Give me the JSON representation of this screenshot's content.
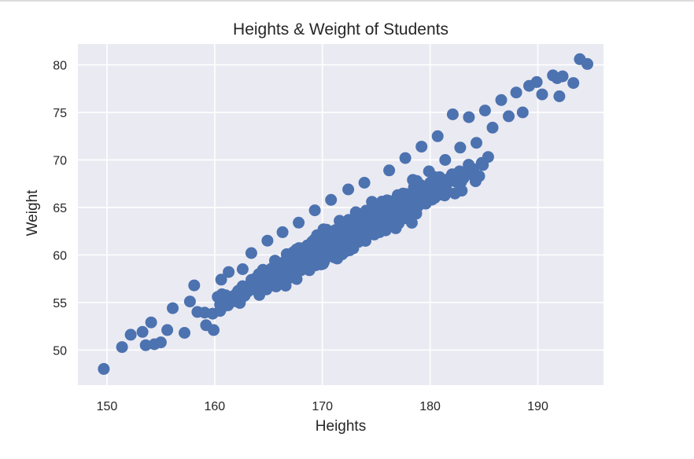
{
  "chart_data": {
    "type": "scatter",
    "title": "Heights & Weight of Students",
    "xlabel": "Heights",
    "ylabel": "Weight",
    "xlim": [
      147.3,
      196.1
    ],
    "ylim": [
      46.3,
      82.2
    ],
    "x_ticks": [
      150,
      160,
      170,
      180,
      190
    ],
    "y_ticks": [
      50,
      55,
      60,
      65,
      70,
      75,
      80
    ],
    "grid": true,
    "background": "#eaeaf2",
    "grid_color": "#ffffff",
    "marker_color": "#4c72b0",
    "legend": "none",
    "trend": {
      "slope": 0.605,
      "intercept": -42.2,
      "x_center": 172.2,
      "x_sd": 6.3,
      "y_noise_sd": 0.9
    },
    "series": [
      {
        "points": [
          [
            149.7,
            48.0
          ],
          [
            151.4,
            50.3
          ],
          [
            152.2,
            51.6
          ],
          [
            153.3,
            51.9
          ],
          [
            153.6,
            50.5
          ],
          [
            154.1,
            52.9
          ],
          [
            154.4,
            50.6
          ],
          [
            155.0,
            50.8
          ],
          [
            155.6,
            52.1
          ],
          [
            156.1,
            54.4
          ],
          [
            157.2,
            51.8
          ],
          [
            157.7,
            55.1
          ],
          [
            158.1,
            56.8
          ],
          [
            158.4,
            54.0
          ],
          [
            159.2,
            52.6
          ],
          [
            159.9,
            52.1
          ],
          [
            160.6,
            57.4
          ],
          [
            161.3,
            58.2
          ],
          [
            162.0,
            55.9
          ],
          [
            162.6,
            58.5
          ],
          [
            163.4,
            60.2
          ],
          [
            164.1,
            57.4
          ],
          [
            164.9,
            61.5
          ],
          [
            165.6,
            59.4
          ],
          [
            166.3,
            62.4
          ],
          [
            167.1,
            59.7
          ],
          [
            167.8,
            63.4
          ],
          [
            168.6,
            61.0
          ],
          [
            169.3,
            64.7
          ],
          [
            170.1,
            62.7
          ],
          [
            170.8,
            65.8
          ],
          [
            171.6,
            63.6
          ],
          [
            172.4,
            66.9
          ],
          [
            173.1,
            64.5
          ],
          [
            173.9,
            67.6
          ],
          [
            174.6,
            65.6
          ],
          [
            175.3,
            62.4
          ],
          [
            176.2,
            68.9
          ],
          [
            177.0,
            66.3
          ],
          [
            177.7,
            70.2
          ],
          [
            178.4,
            67.9
          ],
          [
            179.2,
            71.4
          ],
          [
            179.9,
            68.8
          ],
          [
            180.7,
            72.5
          ],
          [
            181.4,
            70.0
          ],
          [
            182.1,
            74.8
          ],
          [
            182.8,
            71.3
          ],
          [
            183.6,
            74.5
          ],
          [
            184.3,
            71.8
          ],
          [
            185.1,
            75.2
          ],
          [
            185.8,
            73.4
          ],
          [
            186.6,
            76.3
          ],
          [
            187.3,
            74.6
          ],
          [
            188.0,
            77.1
          ],
          [
            188.6,
            75.0
          ],
          [
            189.2,
            77.8
          ],
          [
            189.9,
            78.2
          ],
          [
            190.4,
            76.9
          ],
          [
            191.4,
            78.9
          ],
          [
            191.8,
            78.6
          ],
          [
            192.0,
            76.7
          ],
          [
            192.3,
            78.8
          ],
          [
            193.3,
            78.1
          ],
          [
            193.9,
            80.6
          ],
          [
            194.6,
            80.1
          ]
        ]
      }
    ]
  }
}
